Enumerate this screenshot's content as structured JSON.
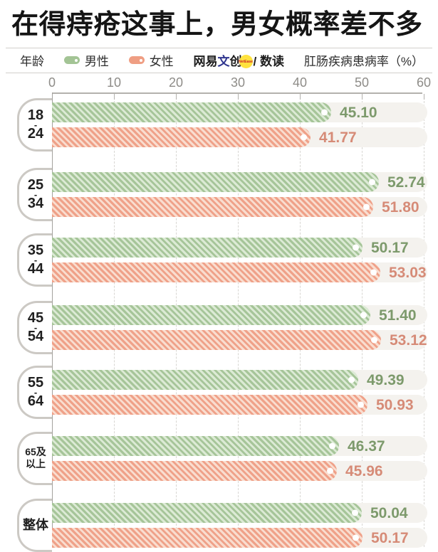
{
  "title": "在得痔疮这事上，男女概率差不多",
  "legend": {
    "age_label": "年龄",
    "male_label": "男性",
    "female_label": "女性",
    "source_prefix": "网易",
    "source_wen": "文",
    "source_chuang": "创",
    "source_badge": "NetEase",
    "source_suffix": "/ 数读",
    "axis_title": "肛肠疾病患病率（%）"
  },
  "colors": {
    "male_solid": "#a3c495",
    "male_stripe": "#a6c599",
    "male_stripe_light": "#dcead5",
    "male_text": "#7d9a6c",
    "female_solid": "#ef9e83",
    "female_stripe": "#efa189",
    "female_stripe_light": "#f9ddcf",
    "female_text": "#d68b77",
    "track": "#f4f2ee",
    "badge_bg": "#ffe23e"
  },
  "chart_data": {
    "type": "bar",
    "orientation": "horizontal",
    "title": "在得痔疮这事上，男女概率差不多",
    "xlabel": "肛肠疾病患病率（%）",
    "xlim": [
      0,
      60
    ],
    "xticks": [
      0,
      10,
      20,
      30,
      40,
      50,
      60
    ],
    "grid": "dashed-vertical",
    "legend_position": "top",
    "categories": [
      "18-24",
      "25-34",
      "35-44",
      "45-54",
      "55-64",
      "65及以上",
      "整体"
    ],
    "category_lines": [
      [
        "18",
        "-",
        "24"
      ],
      [
        "25",
        "-",
        "34"
      ],
      [
        "35",
        "-",
        "44"
      ],
      [
        "45",
        "-",
        "54"
      ],
      [
        "55",
        "-",
        "64"
      ],
      [
        "65及",
        "以上"
      ],
      [
        "整体"
      ]
    ],
    "series": [
      {
        "name": "男性",
        "values": [
          45.1,
          52.74,
          50.17,
          51.4,
          49.39,
          46.37,
          50.04
        ]
      },
      {
        "name": "女性",
        "values": [
          41.77,
          51.8,
          53.03,
          53.12,
          50.93,
          45.96,
          50.17
        ]
      }
    ]
  }
}
